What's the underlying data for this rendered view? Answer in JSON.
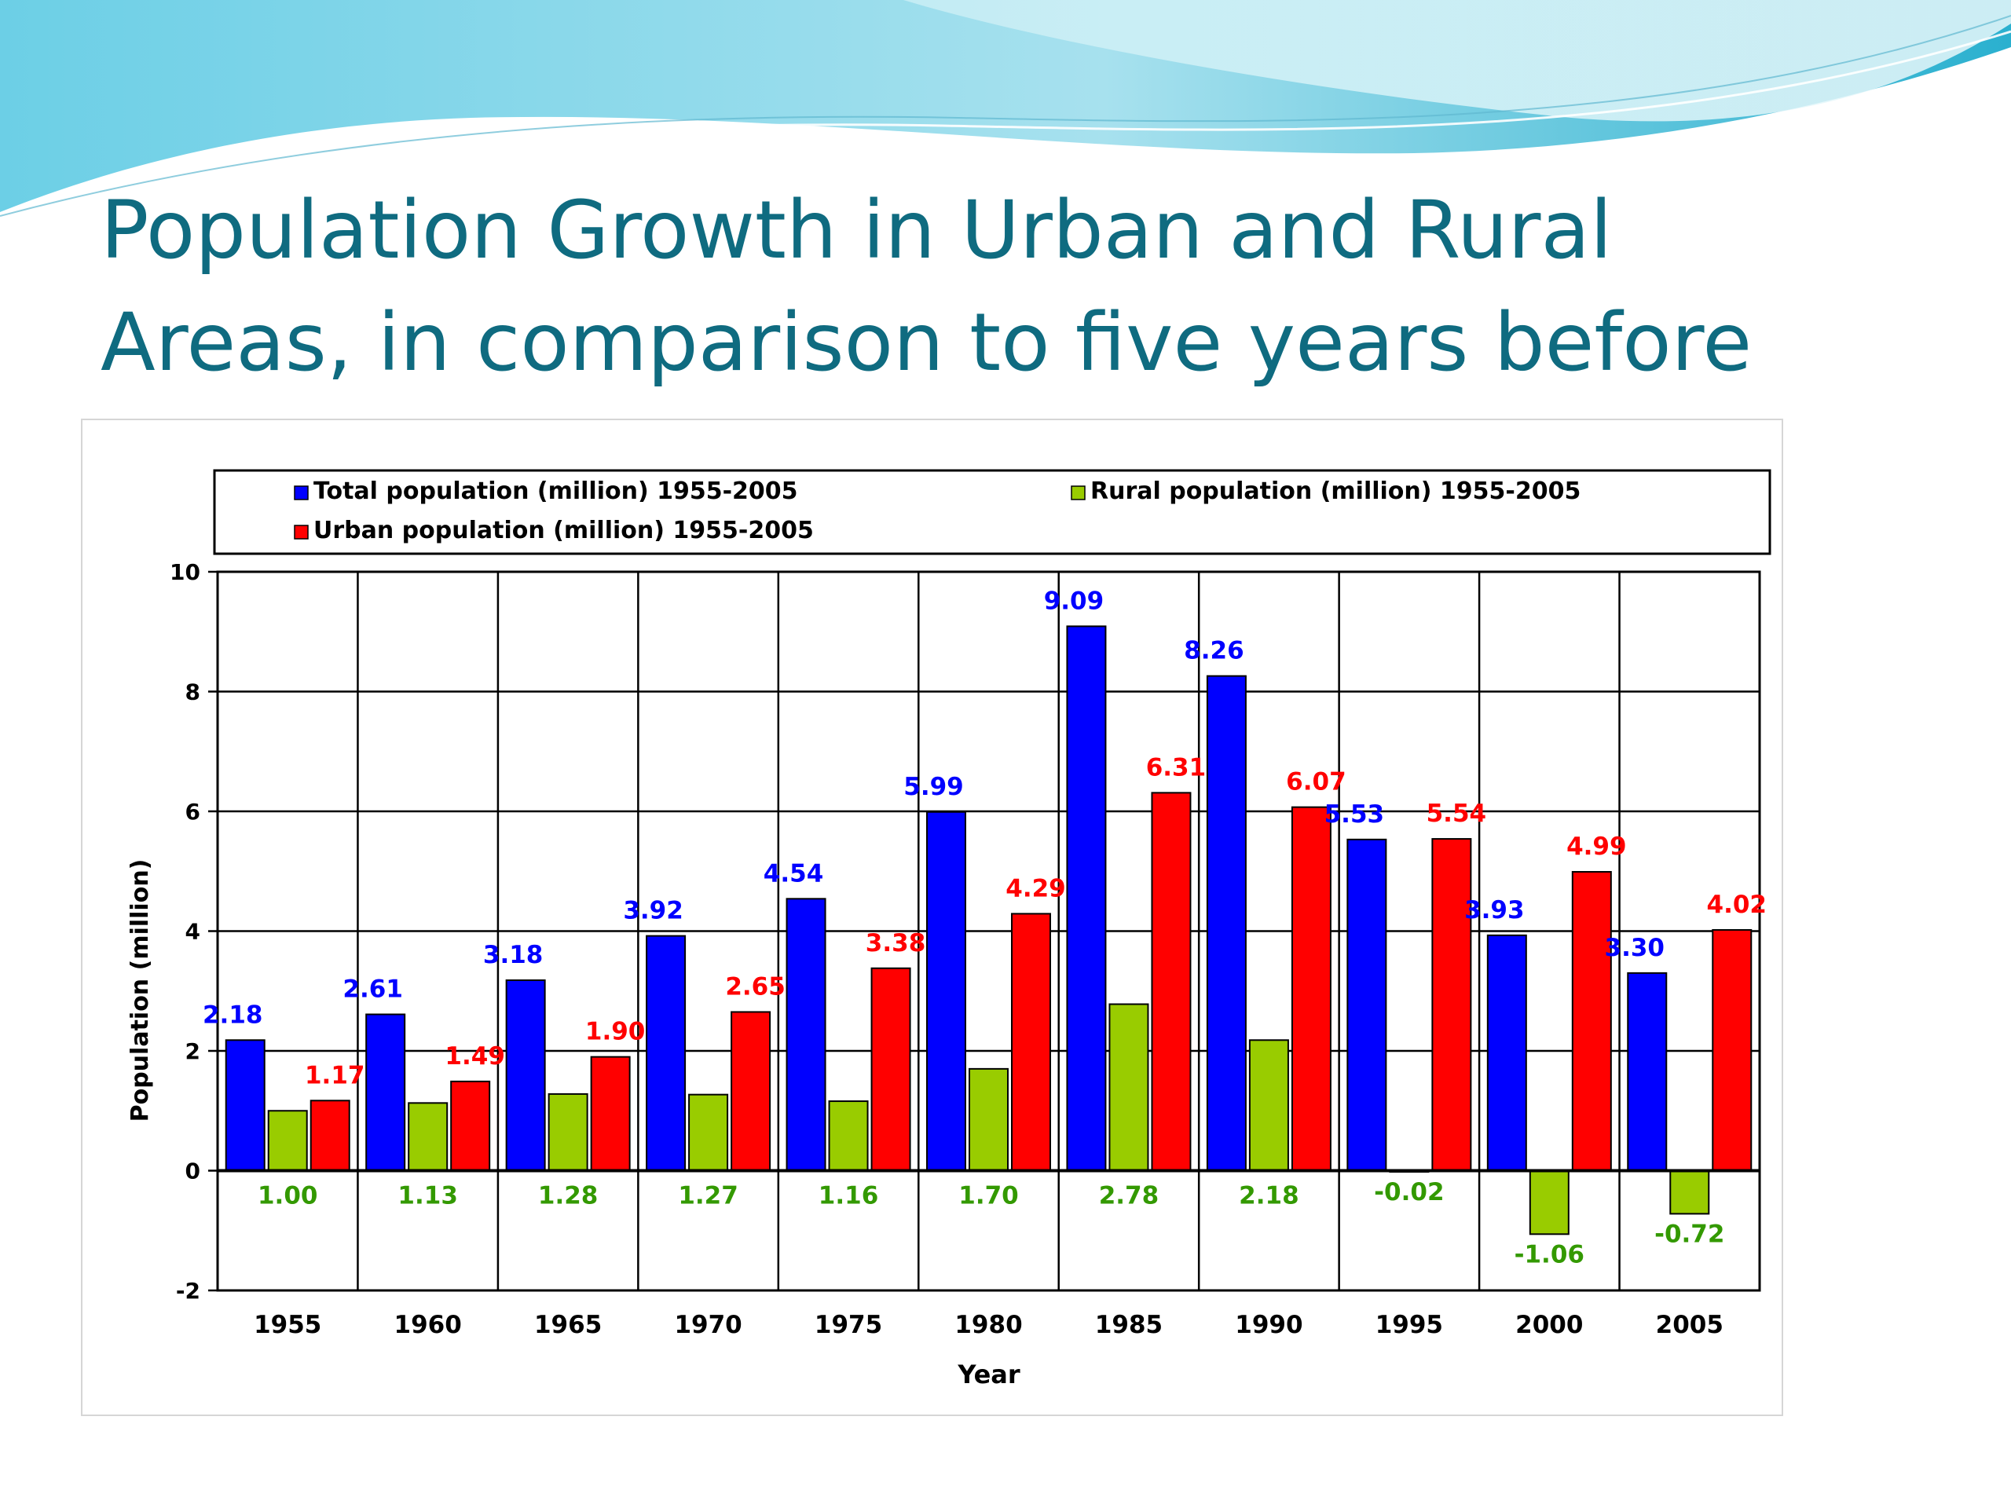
{
  "slide": {
    "title_line1": "Population Growth in Urban and Rural",
    "title_line2": "Areas, in comparison to five years before"
  },
  "colors": {
    "title": "#0f6b80",
    "total": "#0000ff",
    "rural": "#99cc00",
    "urban": "#ff0000",
    "rural_label": "#339900"
  },
  "chart_data": {
    "type": "bar",
    "title": "",
    "xlabel": "Year",
    "ylabel": "Population (million)",
    "ylim": [
      -2,
      10
    ],
    "yticks": [
      -2,
      0,
      2,
      4,
      6,
      8,
      10
    ],
    "grid": true,
    "legend_position": "top",
    "categories": [
      "1955",
      "1960",
      "1965",
      "1970",
      "1975",
      "1980",
      "1985",
      "1990",
      "1995",
      "2000",
      "2005"
    ],
    "series": [
      {
        "name": "Total population (million) 1955-2005",
        "color": "#0000ff",
        "values": [
          2.18,
          2.61,
          3.18,
          3.92,
          4.54,
          5.99,
          9.09,
          8.26,
          5.53,
          3.93,
          3.3
        ],
        "labels": [
          "2.18",
          "2.61",
          "3.18",
          "3.92",
          "4.54",
          "5.99",
          "9.09",
          "8.26",
          "5.53",
          "3.93",
          "3.30"
        ]
      },
      {
        "name": "Rural population (million) 1955-2005",
        "color": "#99cc00",
        "values": [
          1.0,
          1.13,
          1.28,
          1.27,
          1.16,
          1.7,
          2.78,
          2.18,
          -0.02,
          -1.06,
          -0.72
        ],
        "labels": [
          "1.00",
          "1.13",
          "1.28",
          "1.27",
          "1.16",
          "1.70",
          "2.78",
          "2.18",
          "-0.02",
          "-1.06",
          "-0.72"
        ]
      },
      {
        "name": "Urban population (million) 1955-2005",
        "color": "#ff0000",
        "values": [
          1.17,
          1.49,
          1.9,
          2.65,
          3.38,
          4.29,
          6.31,
          6.07,
          5.54,
          4.99,
          4.02
        ],
        "labels": [
          "1.17",
          "1.49",
          "1.90",
          "2.65",
          "3.38",
          "4.29",
          "6.31",
          "6.07",
          "5.54",
          "4.99",
          "4.02"
        ]
      }
    ]
  }
}
